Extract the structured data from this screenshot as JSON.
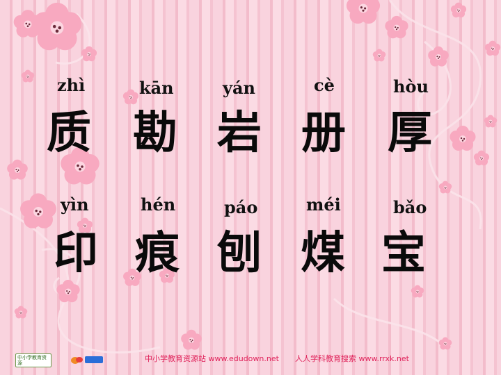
{
  "rows": [
    [
      {
        "pinyin": "zhì",
        "hanzi": "质"
      },
      {
        "pinyin": "kān",
        "hanzi": "勘"
      },
      {
        "pinyin": "yán",
        "hanzi": "岩"
      },
      {
        "pinyin": "cè",
        "hanzi": "册"
      },
      {
        "pinyin": "hòu",
        "hanzi": "厚"
      }
    ],
    [
      {
        "pinyin": "yìn",
        "hanzi": "印"
      },
      {
        "pinyin": "hén",
        "hanzi": "痕"
      },
      {
        "pinyin": "páo",
        "hanzi": "刨"
      },
      {
        "pinyin": "méi",
        "hanzi": "煤"
      },
      {
        "pinyin": "bǎo",
        "hanzi": "宝"
      }
    ]
  ],
  "footer": {
    "site1": "中小学教育资源站 www.edudown.net",
    "site2": "人人学科教育搜索  www.rrxk.net",
    "logo1_text": "中小学教育资源"
  },
  "colors": {
    "background": "#f7c9d6",
    "flower": "#f6a0ba",
    "footer_text": "#e0225a"
  }
}
